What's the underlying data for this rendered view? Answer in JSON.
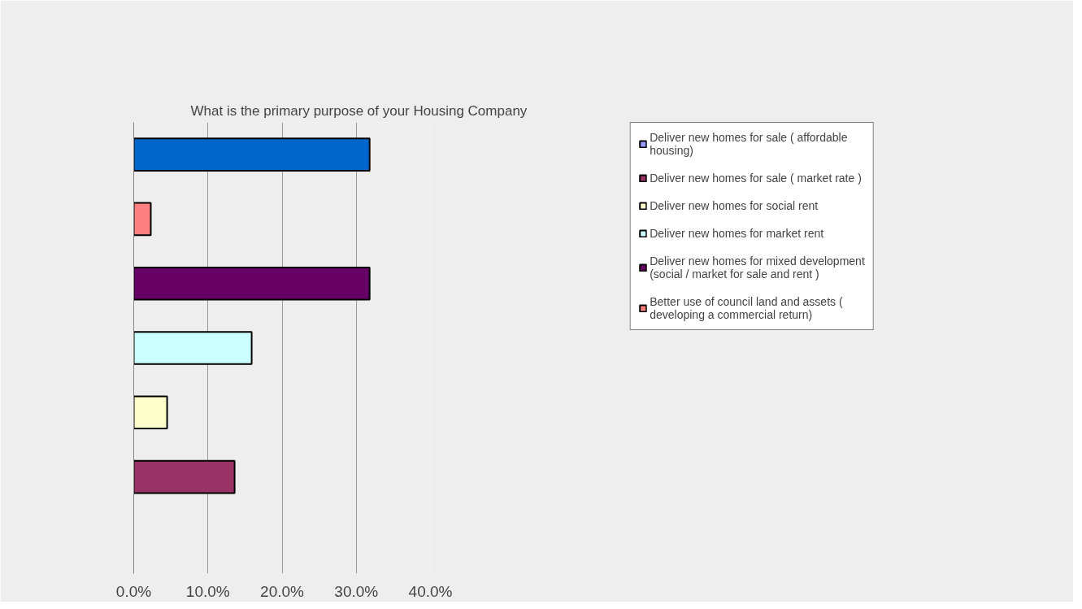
{
  "chart_data": {
    "type": "bar",
    "orientation": "horizontal",
    "title": "What is the primary purpose of your  Housing Company",
    "categories": [
      null
    ],
    "series": [
      {
        "name": "Deliver new homes for sale ( affordable housing)",
        "color": "#9999ff",
        "values": [
          null
        ]
      },
      {
        "name": "Deliver new homes for sale ( market rate )",
        "color": "#993366",
        "values": [
          13.6
        ]
      },
      {
        "name": "Deliver new homes for social rent",
        "color": "#ffffcc",
        "values": [
          4.5
        ]
      },
      {
        "name": "Deliver new homes for market rent",
        "color": "#ccffff",
        "values": [
          15.9
        ]
      },
      {
        "name": "Deliver new homes for mixed development (social / market for sale and rent )",
        "color": "#660066",
        "values": [
          31.8
        ]
      },
      {
        "name": "Better use of council land and assets ( developing a commercial return)",
        "color": "#ff8080",
        "values": [
          2.3
        ]
      },
      {
        "color": "#0066cc",
        "values": [
          31.8
        ]
      }
    ],
    "xlim": [
      0,
      40
    ],
    "xticks": [
      {
        "value": 0,
        "label": "0.0%"
      },
      {
        "value": 10,
        "label": "10.0%"
      },
      {
        "value": 20,
        "label": "20.0%"
      },
      {
        "value": 30,
        "label": "30.0%"
      },
      {
        "value": 40,
        "label": "40.0%"
      }
    ],
    "grid": "x",
    "legend": "right",
    "tick_labels": "x"
  }
}
